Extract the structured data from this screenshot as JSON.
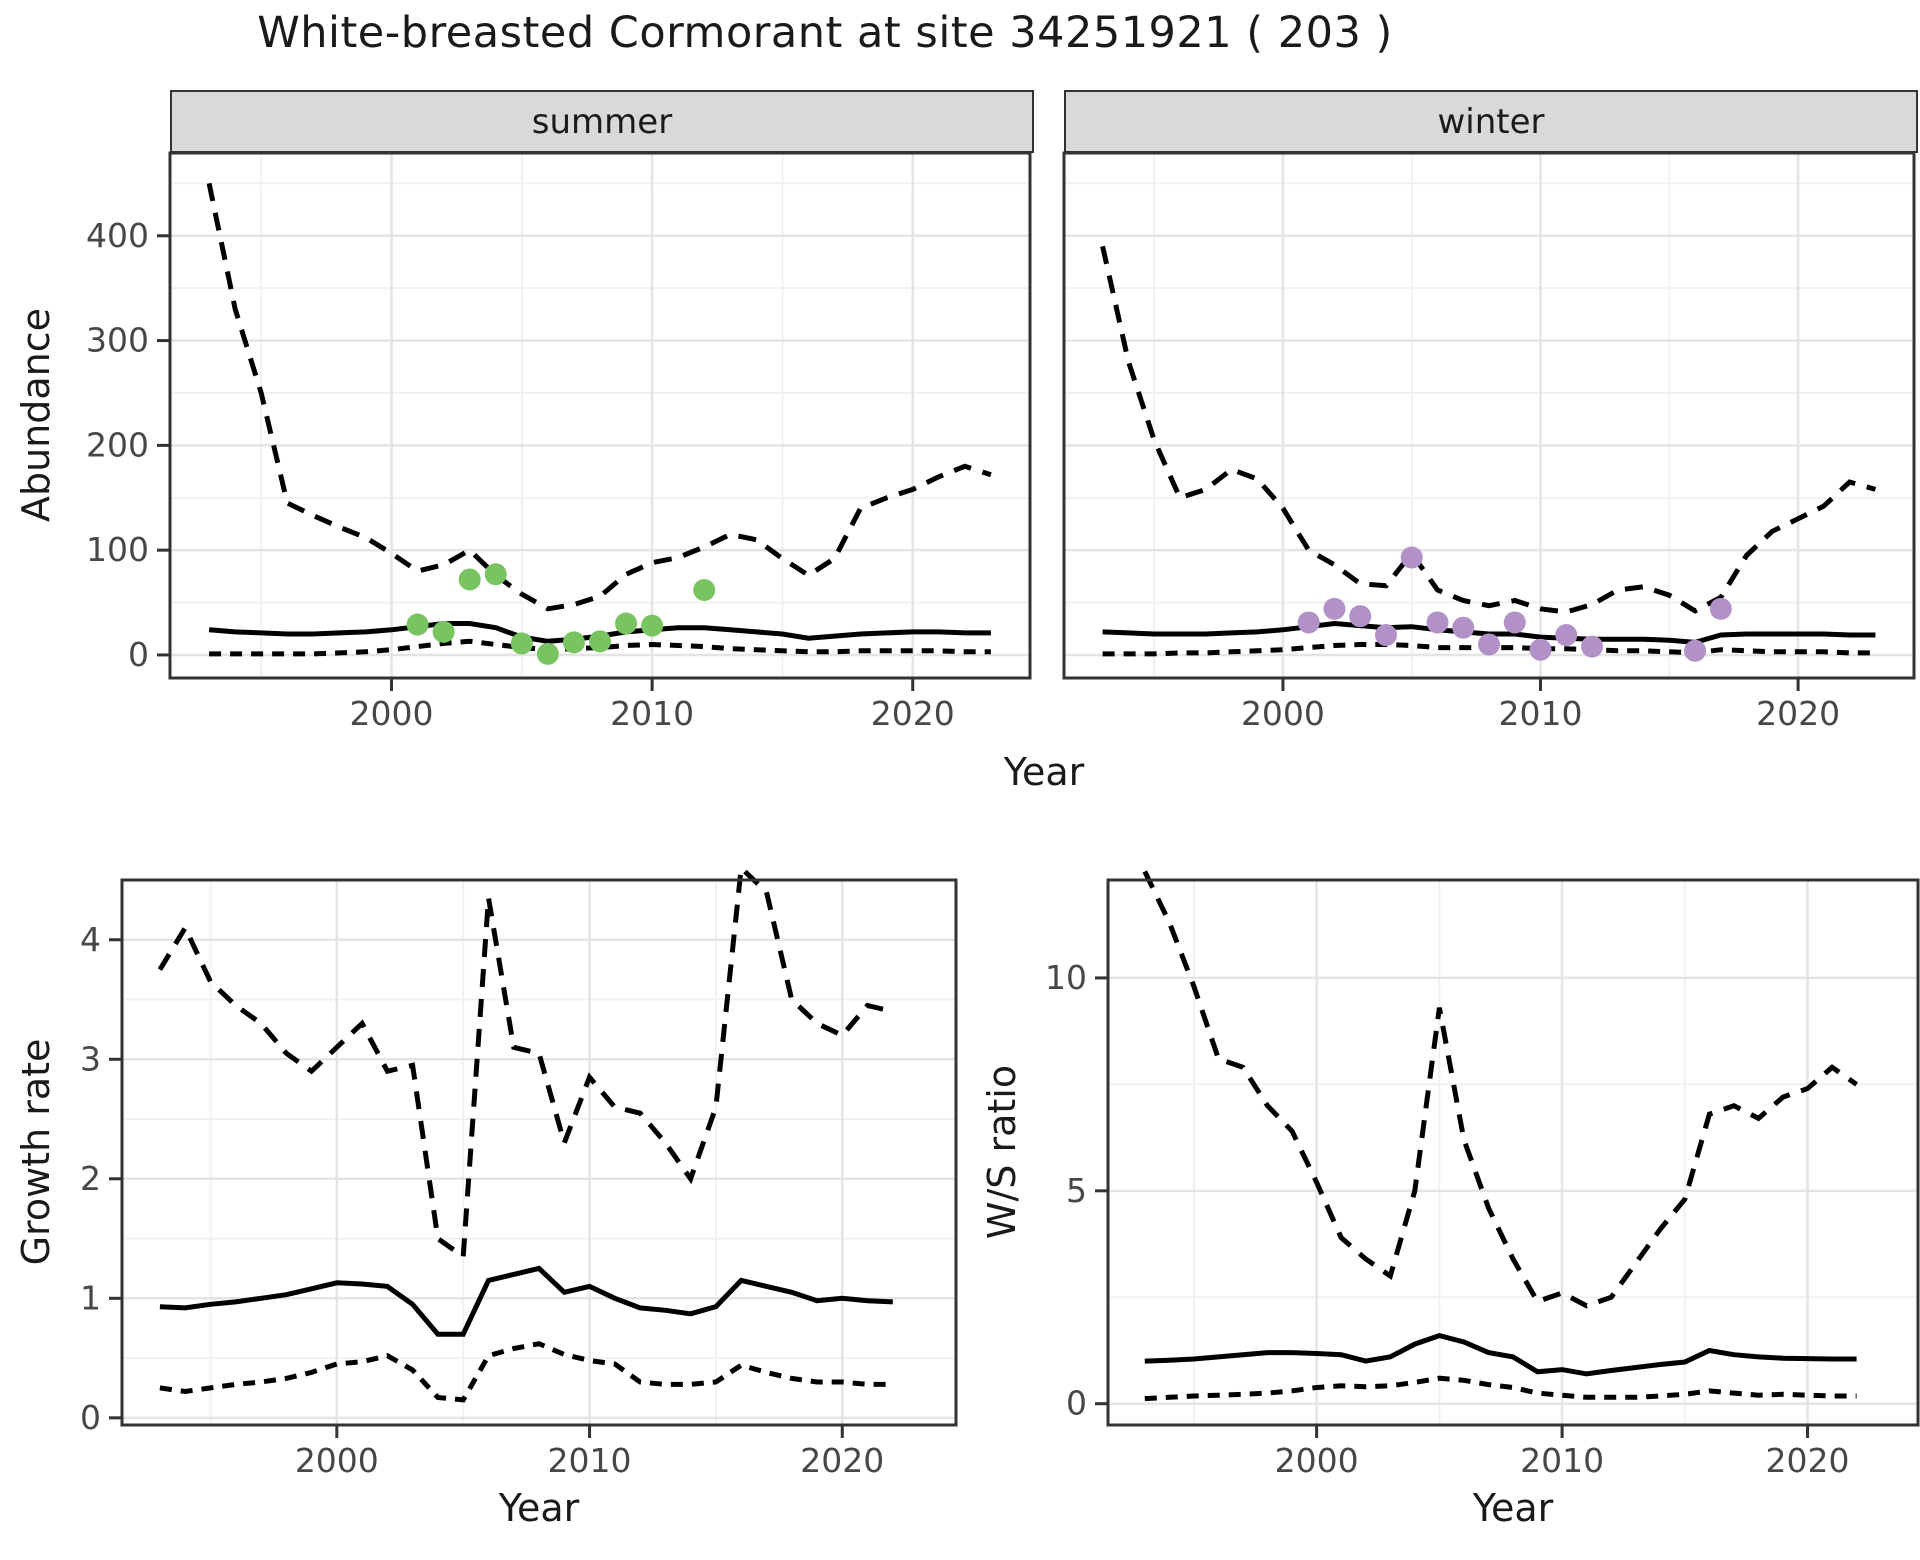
{
  "ui": {
    "title": "White-breasted Cormorant at site 34251921 ( 203 )",
    "facets": [
      {
        "label": "summer"
      },
      {
        "label": "winter"
      }
    ],
    "axes": {
      "abundance": "Abundance",
      "growth": "Growth rate",
      "ws": "W/S ratio",
      "year": "Year"
    }
  },
  "colors": {
    "summer_points": "#78C460",
    "winter_points": "#B191C8",
    "line": "#000000",
    "grid_major": "#e4e4e4",
    "grid_minor": "#f1f1f1",
    "panel_border": "#333333",
    "strip_fill": "#d9d9d9",
    "tick_label": "#474747",
    "background": "#ffffff"
  },
  "chart_data": [
    {
      "id": "summer",
      "type": "line",
      "title": "summer",
      "xlabel": "Year",
      "ylabel": "Abundance",
      "xlim": [
        1991.5,
        2024.5
      ],
      "ylim": [
        -22,
        479
      ],
      "x_ticks": [
        2000,
        2010,
        2020
      ],
      "x_minor": [
        1995,
        2005,
        2015
      ],
      "y_ticks": [
        0,
        100,
        200,
        300,
        400
      ],
      "y_minor": [
        50,
        150,
        250,
        350,
        450
      ],
      "show_y_ticks": true,
      "legend": "none",
      "x": [
        1993,
        1994,
        1995,
        1996,
        1997,
        1998,
        1999,
        2000,
        2001,
        2002,
        2003,
        2004,
        2005,
        2006,
        2007,
        2008,
        2009,
        2010,
        2011,
        2012,
        2013,
        2014,
        2015,
        2016,
        2017,
        2018,
        2019,
        2020,
        2021,
        2022,
        2023
      ],
      "series": [
        {
          "name": "upper_ci",
          "style": "dashed",
          "values": [
            450,
            330,
            250,
            145,
            133,
            122,
            112,
            97,
            80,
            86,
            100,
            76,
            58,
            44,
            48,
            56,
            77,
            88,
            93,
            103,
            115,
            110,
            92,
            76,
            92,
            140,
            150,
            158,
            170,
            180,
            172
          ]
        },
        {
          "name": "median",
          "style": "solid",
          "values": [
            24,
            22,
            21,
            20,
            20,
            21,
            22,
            24,
            27,
            30,
            30,
            26,
            17,
            13,
            15,
            18,
            22,
            24,
            26,
            26,
            24,
            22,
            20,
            16,
            18,
            20,
            21,
            22,
            22,
            21,
            21
          ]
        },
        {
          "name": "lower_ci",
          "style": "dashed-short",
          "values": [
            1,
            1,
            1,
            1,
            1,
            2,
            3,
            5,
            8,
            11,
            13,
            10,
            7,
            5,
            6,
            7,
            9,
            10,
            9,
            8,
            6,
            5,
            4,
            3,
            3,
            4,
            4,
            4,
            4,
            3,
            3
          ]
        }
      ],
      "points": {
        "name": "observed-counts-summer",
        "color_key": "summer_points",
        "data": [
          [
            2001,
            29
          ],
          [
            2002,
            22
          ],
          [
            2003,
            72
          ],
          [
            2004,
            77
          ],
          [
            2005,
            11
          ],
          [
            2006,
            1
          ],
          [
            2007,
            12
          ],
          [
            2008,
            13
          ],
          [
            2009,
            30
          ],
          [
            2010,
            28
          ],
          [
            2012,
            62
          ]
        ]
      }
    },
    {
      "id": "winter",
      "type": "line",
      "title": "winter",
      "xlabel": "Year",
      "ylabel": "Abundance",
      "xlim": [
        1991.5,
        2024.5
      ],
      "ylim": [
        -22,
        479
      ],
      "x_ticks": [
        2000,
        2010,
        2020
      ],
      "x_minor": [
        1995,
        2005,
        2015
      ],
      "y_ticks": [
        0,
        100,
        200,
        300,
        400
      ],
      "y_minor": [
        50,
        150,
        250,
        350,
        450
      ],
      "show_y_ticks": false,
      "legend": "none",
      "x": [
        1993,
        1994,
        1995,
        1996,
        1997,
        1998,
        1999,
        2000,
        2001,
        2002,
        2003,
        2004,
        2005,
        2006,
        2007,
        2008,
        2009,
        2010,
        2011,
        2012,
        2013,
        2014,
        2015,
        2016,
        2017,
        2018,
        2019,
        2020,
        2021,
        2022,
        2023
      ],
      "series": [
        {
          "name": "upper_ci",
          "style": "dashed",
          "values": [
            390,
            280,
            205,
            150,
            158,
            177,
            168,
            140,
            100,
            86,
            68,
            66,
            97,
            62,
            52,
            47,
            52,
            44,
            41,
            48,
            62,
            65,
            57,
            42,
            55,
            95,
            118,
            130,
            142,
            165,
            158
          ]
        },
        {
          "name": "median",
          "style": "solid",
          "values": [
            22,
            21,
            20,
            20,
            20,
            21,
            22,
            24,
            27,
            30,
            28,
            26,
            27,
            24,
            22,
            20,
            20,
            17,
            16,
            15,
            15,
            15,
            14,
            12,
            19,
            20,
            20,
            20,
            20,
            19,
            19
          ]
        },
        {
          "name": "lower_ci",
          "style": "dashed-short",
          "values": [
            1,
            1,
            1,
            2,
            2,
            3,
            4,
            5,
            7,
            9,
            10,
            10,
            9,
            7,
            7,
            7,
            7,
            6,
            6,
            5,
            4,
            4,
            3,
            2,
            5,
            4,
            3,
            3,
            3,
            2,
            2
          ]
        }
      ],
      "points": {
        "name": "observed-counts-winter",
        "color_key": "winter_points",
        "data": [
          [
            2001,
            31
          ],
          [
            2002,
            44
          ],
          [
            2003,
            37
          ],
          [
            2004,
            19
          ],
          [
            2005,
            93
          ],
          [
            2006,
            31
          ],
          [
            2007,
            26
          ],
          [
            2008,
            10
          ],
          [
            2009,
            31
          ],
          [
            2010,
            5
          ],
          [
            2011,
            19
          ],
          [
            2012,
            8
          ],
          [
            2016,
            4
          ],
          [
            2017,
            44
          ]
        ]
      }
    },
    {
      "id": "growth",
      "type": "line",
      "title": "",
      "xlabel": "Year",
      "ylabel": "Growth rate",
      "xlim": [
        1991.5,
        2024.5
      ],
      "ylim": [
        -0.06,
        4.5
      ],
      "x_ticks": [
        2000,
        2010,
        2020
      ],
      "x_minor": [
        1995,
        2005,
        2015
      ],
      "y_ticks": [
        0,
        1,
        2,
        3,
        4
      ],
      "y_minor": [
        0.5,
        1.5,
        2.5,
        3.5
      ],
      "show_y_ticks": true,
      "legend": "none",
      "x": [
        1993,
        1994,
        1995,
        1996,
        1997,
        1998,
        1999,
        2000,
        2001,
        2002,
        2003,
        2004,
        2005,
        2006,
        2007,
        2008,
        2009,
        2010,
        2011,
        2012,
        2013,
        2014,
        2015,
        2016,
        2017,
        2018,
        2019,
        2020,
        2021,
        2022
      ],
      "series": [
        {
          "name": "upper_ci",
          "style": "dashed",
          "values": [
            3.75,
            4.1,
            3.65,
            3.45,
            3.3,
            3.05,
            2.9,
            3.1,
            3.3,
            2.9,
            2.95,
            1.5,
            1.35,
            4.35,
            3.1,
            3.05,
            2.3,
            2.85,
            2.6,
            2.55,
            2.3,
            2.0,
            2.6,
            4.6,
            4.4,
            3.5,
            3.3,
            3.2,
            3.45,
            3.4
          ]
        },
        {
          "name": "median",
          "style": "solid",
          "values": [
            0.93,
            0.92,
            0.95,
            0.97,
            1.0,
            1.03,
            1.08,
            1.13,
            1.12,
            1.1,
            0.95,
            0.7,
            0.7,
            1.15,
            1.2,
            1.25,
            1.05,
            1.1,
            1.0,
            0.92,
            0.9,
            0.87,
            0.93,
            1.15,
            1.1,
            1.05,
            0.98,
            1.0,
            0.98,
            0.97
          ]
        },
        {
          "name": "lower_ci",
          "style": "dashed-short",
          "values": [
            0.25,
            0.22,
            0.25,
            0.28,
            0.3,
            0.33,
            0.38,
            0.45,
            0.47,
            0.52,
            0.4,
            0.17,
            0.15,
            0.52,
            0.58,
            0.62,
            0.53,
            0.48,
            0.45,
            0.3,
            0.28,
            0.28,
            0.3,
            0.44,
            0.38,
            0.33,
            0.3,
            0.3,
            0.28,
            0.28
          ]
        }
      ],
      "points": null
    },
    {
      "id": "ws",
      "type": "line",
      "title": "",
      "xlabel": "Year",
      "ylabel": "W/S ratio",
      "xlim": [
        1991.5,
        2024.5
      ],
      "ylim": [
        -0.5,
        12.3
      ],
      "x_ticks": [
        2000,
        2010,
        2020
      ],
      "x_minor": [
        1995,
        2005,
        2015
      ],
      "y_ticks": [
        0,
        5,
        10
      ],
      "y_minor": [
        2.5,
        7.5
      ],
      "show_y_ticks": true,
      "legend": "none",
      "x": [
        1993,
        1994,
        1995,
        1996,
        1997,
        1998,
        1999,
        2000,
        2001,
        2002,
        2003,
        2004,
        2005,
        2006,
        2007,
        2008,
        2009,
        2010,
        2011,
        2012,
        2013,
        2014,
        2015,
        2016,
        2017,
        2018,
        2019,
        2020,
        2021,
        2022
      ],
      "series": [
        {
          "name": "upper_ci",
          "style": "dashed",
          "values": [
            12.5,
            11.3,
            9.8,
            8.1,
            7.9,
            7.0,
            6.4,
            5.2,
            3.9,
            3.4,
            3.0,
            5.0,
            9.3,
            6.2,
            4.6,
            3.4,
            2.4,
            2.6,
            2.3,
            2.5,
            3.3,
            4.1,
            4.8,
            6.8,
            7.0,
            6.7,
            7.2,
            7.4,
            7.9,
            7.5
          ]
        },
        {
          "name": "median",
          "style": "solid",
          "values": [
            1.0,
            1.02,
            1.05,
            1.1,
            1.15,
            1.2,
            1.2,
            1.18,
            1.15,
            1.0,
            1.1,
            1.4,
            1.6,
            1.45,
            1.2,
            1.1,
            0.75,
            0.8,
            0.7,
            0.78,
            0.85,
            0.92,
            0.98,
            1.25,
            1.15,
            1.1,
            1.07,
            1.06,
            1.05,
            1.05
          ]
        },
        {
          "name": "lower_ci",
          "style": "dashed-short",
          "values": [
            0.12,
            0.15,
            0.18,
            0.2,
            0.22,
            0.25,
            0.3,
            0.38,
            0.42,
            0.4,
            0.42,
            0.5,
            0.6,
            0.55,
            0.45,
            0.38,
            0.25,
            0.2,
            0.15,
            0.15,
            0.15,
            0.18,
            0.22,
            0.3,
            0.25,
            0.2,
            0.22,
            0.2,
            0.18,
            0.18
          ]
        }
      ],
      "points": null
    }
  ]
}
